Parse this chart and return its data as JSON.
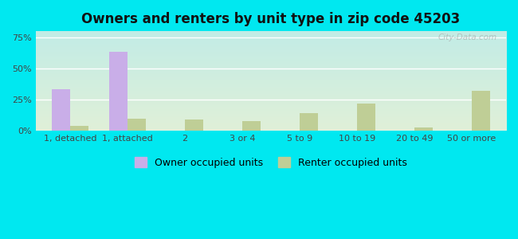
{
  "title": "Owners and renters by unit type in zip code 45203",
  "categories": [
    "1, detached",
    "1, attached",
    "2",
    "3 or 4",
    "5 to 9",
    "10 to 19",
    "20 to 49",
    "50 or more"
  ],
  "owner_values": [
    33,
    63,
    0,
    0,
    0,
    0,
    0,
    0
  ],
  "renter_values": [
    4,
    10,
    9,
    8,
    14,
    22,
    3,
    32
  ],
  "owner_color": "#c9aee8",
  "renter_color": "#bfce96",
  "background_outer": "#00e8f0",
  "background_plot_top": "#c2ece6",
  "background_plot_bottom": "#e0f0d8",
  "grid_color": "#ffffff",
  "ylabel_ticks": [
    "0%",
    "25%",
    "50%",
    "75%"
  ],
  "ytick_values": [
    0,
    25,
    50,
    75
  ],
  "ylim": [
    0,
    80
  ],
  "legend_owner": "Owner occupied units",
  "legend_renter": "Renter occupied units",
  "watermark": "City-Data.com",
  "bar_width": 0.32,
  "title_fontsize": 12,
  "tick_fontsize": 8,
  "legend_fontsize": 9
}
